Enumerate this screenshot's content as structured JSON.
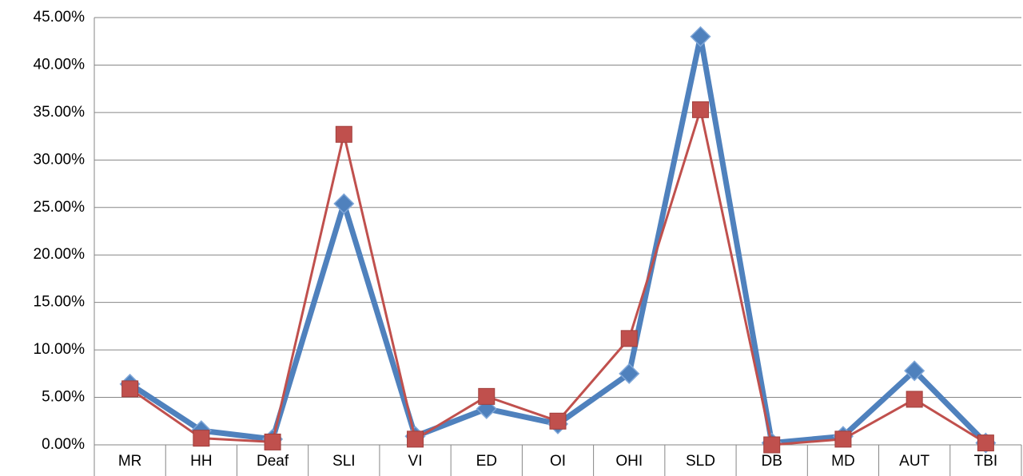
{
  "chart_data": {
    "type": "line",
    "categories": [
      "MR",
      "HH",
      "Deaf",
      "SLI",
      "VI",
      "ED",
      "OI",
      "OHI",
      "SLD",
      "DB",
      "MD",
      "AUT",
      "TBI"
    ],
    "series": [
      {
        "color": "#4f81bd",
        "marker": "diamond",
        "values": [
          6.4,
          1.5,
          0.6,
          25.4,
          0.9,
          3.8,
          2.2,
          7.5,
          43.0,
          0.2,
          0.9,
          7.8,
          0.2
        ]
      },
      {
        "color": "#c0504d",
        "marker": "square",
        "values": [
          5.9,
          0.7,
          0.3,
          32.7,
          0.6,
          5.1,
          2.5,
          11.2,
          35.3,
          0.0,
          0.6,
          4.8,
          0.2
        ]
      }
    ],
    "ylim": [
      0,
      45
    ],
    "yticks": [
      {
        "value": 0,
        "label": "0.00%"
      },
      {
        "value": 5,
        "label": "5.00%"
      },
      {
        "value": 10,
        "label": "10.00%"
      },
      {
        "value": 15,
        "label": "15.00%"
      },
      {
        "value": 20,
        "label": "20.00%"
      },
      {
        "value": 25,
        "label": "25.00%"
      },
      {
        "value": 30,
        "label": "30.00%"
      },
      {
        "value": 35,
        "label": "35.00%"
      },
      {
        "value": 40,
        "label": "40.00%"
      },
      {
        "value": 45,
        "label": "45.00%"
      }
    ],
    "grid": true
  }
}
